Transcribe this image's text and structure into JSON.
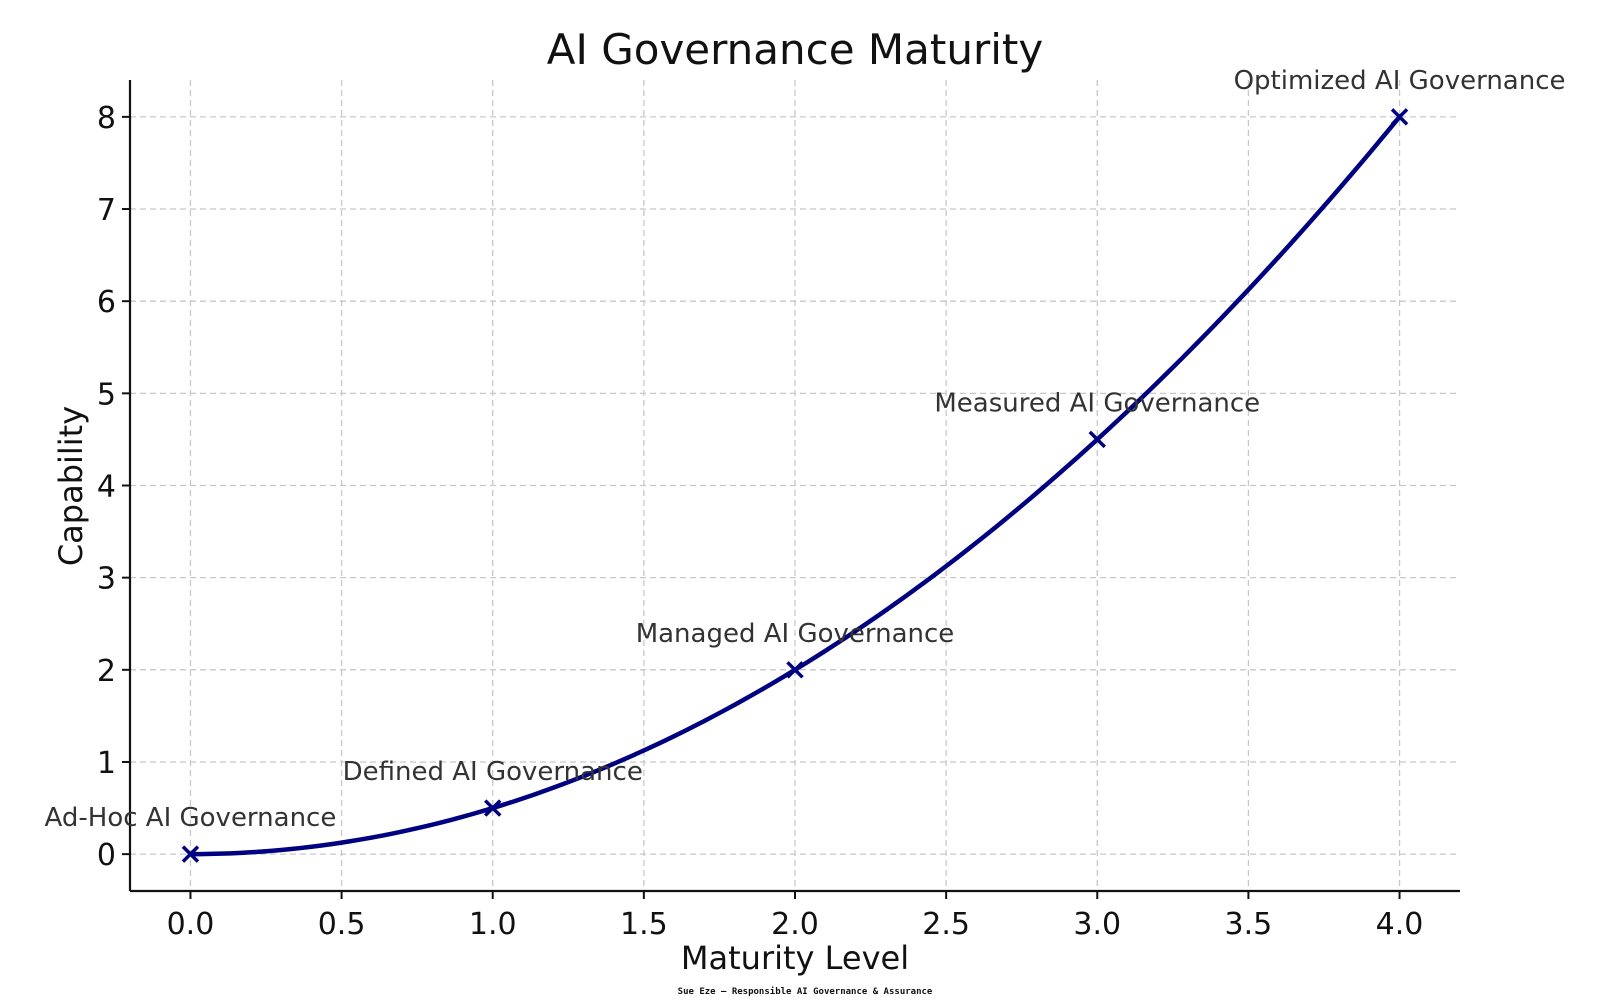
{
  "chart_data": {
    "type": "line",
    "title": "AI Governance Maturity",
    "xlabel": "Maturity Level",
    "ylabel": "Capability",
    "xlim": [
      -0.2,
      4.2
    ],
    "ylim": [
      -0.4,
      8.4
    ],
    "xticks": [
      0.0,
      0.5,
      1.0,
      1.5,
      2.0,
      2.5,
      3.0,
      3.5,
      4.0
    ],
    "xtick_labels": [
      "0.0",
      "0.5",
      "1.0",
      "1.5",
      "2.0",
      "2.5",
      "3.0",
      "3.5",
      "4.0"
    ],
    "yticks": [
      0,
      1,
      2,
      3,
      4,
      5,
      6,
      7,
      8
    ],
    "ytick_labels": [
      "0",
      "1",
      "2",
      "3",
      "4",
      "5",
      "6",
      "7",
      "8"
    ],
    "grid": true,
    "series": [
      {
        "color": "#000080",
        "marker": "x",
        "x": [
          0,
          1,
          2,
          3,
          4
        ],
        "y": [
          0,
          0.5,
          2,
          4.5,
          8
        ]
      }
    ],
    "annotations": [
      {
        "x": 0,
        "y": 0,
        "text": "Ad-Hoc AI Governance"
      },
      {
        "x": 1,
        "y": 0.5,
        "text": "Defined AI Governance"
      },
      {
        "x": 2,
        "y": 2,
        "text": "Managed AI Governance"
      },
      {
        "x": 3,
        "y": 4.5,
        "text": "Measured AI Governance"
      },
      {
        "x": 4,
        "y": 8,
        "text": "Optimized AI Governance"
      }
    ]
  },
  "credit": "Sue Eze – Responsible AI Governance & Assurance"
}
